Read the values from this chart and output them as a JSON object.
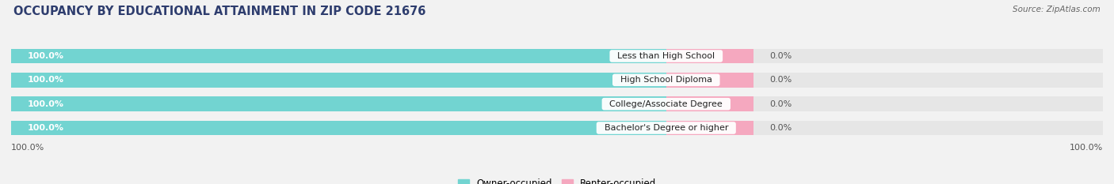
{
  "title": "OCCUPANCY BY EDUCATIONAL ATTAINMENT IN ZIP CODE 21676",
  "source": "Source: ZipAtlas.com",
  "categories": [
    "Less than High School",
    "High School Diploma",
    "College/Associate Degree",
    "Bachelor's Degree or higher"
  ],
  "owner_values": [
    100.0,
    100.0,
    100.0,
    100.0
  ],
  "renter_values": [
    0.0,
    0.0,
    0.0,
    0.0
  ],
  "owner_color": "#72d4d1",
  "renter_color": "#f5a8bf",
  "background_color": "#f2f2f2",
  "bar_bg_color": "#e6e6e6",
  "title_color": "#2e3d6e",
  "title_fontsize": 10.5,
  "source_fontsize": 7.5,
  "label_fontsize": 8,
  "value_fontsize": 8,
  "bar_height": 0.62,
  "legend_label_owner": "Owner-occupied",
  "legend_label_renter": "Renter-occupied",
  "bottom_left_label": "100.0%",
  "bottom_right_label": "100.0%",
  "total_width": 100,
  "owner_pct": 60,
  "renter_pct": 8,
  "white_pct": 32
}
